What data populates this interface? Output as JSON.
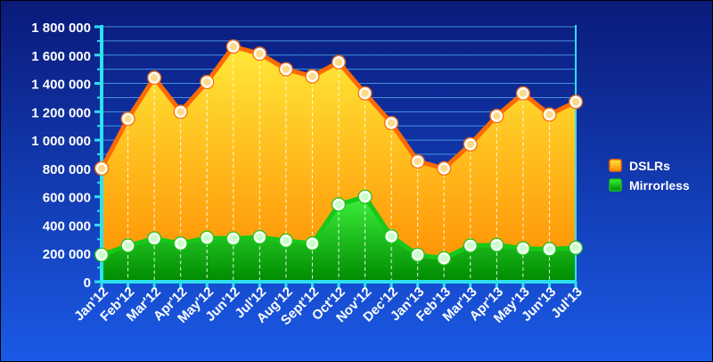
{
  "chart_data": {
    "type": "area",
    "title": "",
    "xlabel": "",
    "ylabel": "",
    "categories": [
      "Jan'12",
      "Feb'12",
      "Mar'12",
      "Apr'12",
      "May'12",
      "Jun'12",
      "Jul'12",
      "Aug'12",
      "Sept'12",
      "Oct'12",
      "Nov'12",
      "Dec'12",
      "Jan'13",
      "Feb'13",
      "Mar'13",
      "Apr'13",
      "May'13",
      "Jun'13",
      "Jul'13"
    ],
    "series": [
      {
        "name": "DSLRs",
        "values": [
          800000,
          1150000,
          1440000,
          1200000,
          1410000,
          1660000,
          1610000,
          1500000,
          1450000,
          1550000,
          1330000,
          1120000,
          850000,
          800000,
          970000,
          1170000,
          1330000,
          1180000,
          1270000
        ]
      },
      {
        "name": "Mirrorless",
        "values": [
          190000,
          255000,
          305000,
          270000,
          310000,
          305000,
          315000,
          290000,
          270000,
          545000,
          600000,
          320000,
          190000,
          165000,
          255000,
          260000,
          235000,
          230000,
          240000
        ]
      }
    ],
    "ylim": [
      0,
      1800000
    ],
    "y_ticks": [
      "0",
      "200 000",
      "400 000",
      "600 000",
      "800 000",
      "1 000 000",
      "1 200 000",
      "1 400 000",
      "1 600 000",
      "1 800 000"
    ],
    "grid": true,
    "legend_position": "right",
    "colors": {
      "background_top": "#0a1a7a",
      "background_bottom": "#1a5ae6",
      "grid": "#4fa3e8",
      "axis": "#2ee0f0",
      "dslr_line": "#ff6a00",
      "dslr_fill_top": "#ffe838",
      "dslr_fill_bottom": "#ff8c00",
      "mirrorless_line": "#18c818",
      "mirrorless_fill_top": "#3cf03c",
      "mirrorless_fill_bottom": "#008a00"
    }
  }
}
